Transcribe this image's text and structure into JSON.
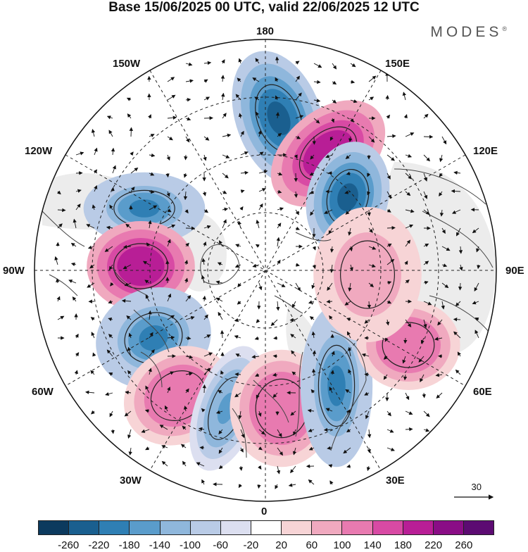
{
  "title": "Base 15/06/2025 00 UTC, valid 22/06/2025 12 UTC",
  "brand": "MODES",
  "brand_mark": "®",
  "longitude_labels": {
    "lon_180": "180",
    "lon_150e": "150E",
    "lon_120e": "120E",
    "lon_90e": "90E",
    "lon_60e": "60E",
    "lon_30e": "30E",
    "lon_0": "0",
    "lon_30w": "30W",
    "lon_60w": "60W",
    "lon_90w": "90W",
    "lon_120w": "120W",
    "lon_150w": "150W"
  },
  "reference_vector_label": "30",
  "colorbar": {
    "ticks": [
      "-260",
      "-220",
      "-180",
      "-140",
      "-100",
      "-60",
      "-20",
      "20",
      "60",
      "100",
      "140",
      "180",
      "220",
      "260"
    ],
    "colors": [
      "#0c3a5e",
      "#1a5f8f",
      "#2f7fb4",
      "#5a9ccb",
      "#8fb7dc",
      "#b9cbe6",
      "#dcdff0",
      "#ffffff",
      "#f7d4d6",
      "#f0a9bf",
      "#e87ab0",
      "#d84aa4",
      "#b81e96",
      "#8a0d86",
      "#5c0b72"
    ]
  },
  "anomaly_centers": [
    {
      "sign": "negative",
      "level": -220,
      "lon_label": "180"
    },
    {
      "sign": "positive",
      "level": 220,
      "lon_label": "150E"
    },
    {
      "sign": "negative",
      "level": -220,
      "lon_label": "120E"
    },
    {
      "sign": "negative",
      "level": -180,
      "lon_label": "120W"
    },
    {
      "sign": "positive",
      "level": 220,
      "lon_label": "90W"
    },
    {
      "sign": "negative",
      "level": -180,
      "lon_label": "60W"
    },
    {
      "sign": "positive",
      "level": 140,
      "lon_label": "30W"
    },
    {
      "sign": "negative",
      "level": -140,
      "lon_label": "30W"
    },
    {
      "sign": "positive",
      "level": 140,
      "lon_label": "0"
    },
    {
      "sign": "negative",
      "level": -180,
      "lon_label": "30E"
    },
    {
      "sign": "positive",
      "level": 140,
      "lon_label": "60E"
    },
    {
      "sign": "positive",
      "level": 100,
      "lon_label": "90E"
    }
  ]
}
